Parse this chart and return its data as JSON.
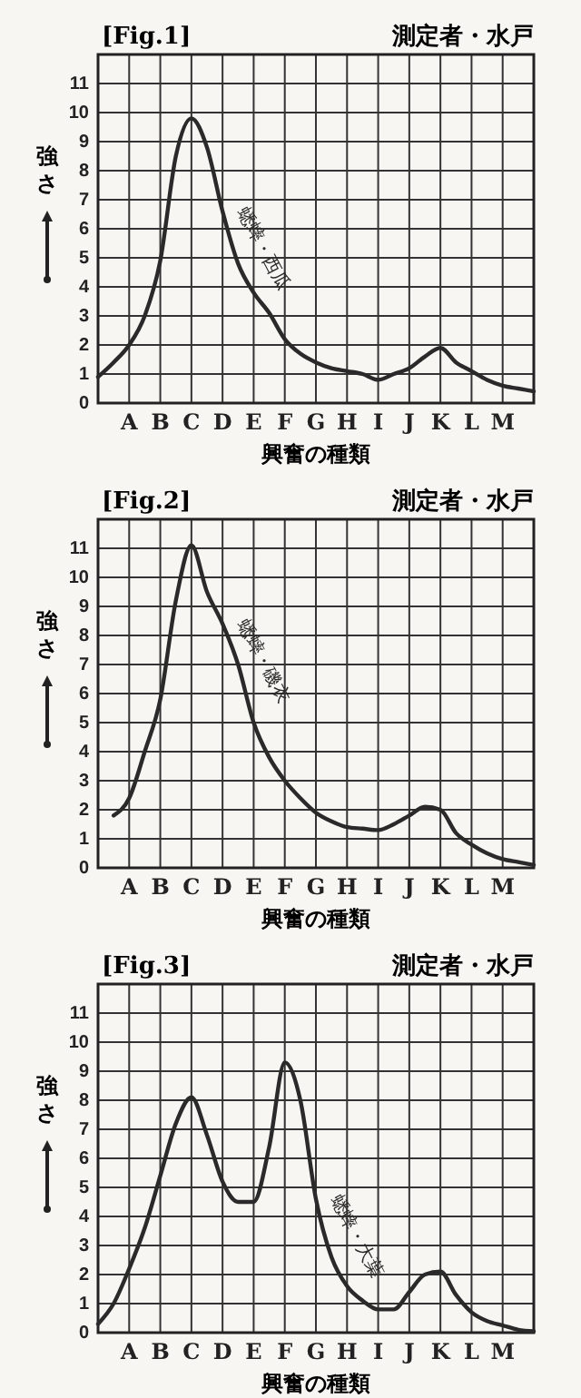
{
  "chart_data": [
    {
      "type": "line",
      "title": "[Fig.1]",
      "subtitle": "測定者・水戸",
      "xlabel": "興奮の種類",
      "ylabel": "強さ",
      "ylim": [
        0,
        12
      ],
      "categories": [
        null,
        null,
        "A",
        null,
        "B",
        null,
        "C",
        null,
        "D",
        null,
        "E",
        null,
        "F",
        null,
        "G",
        null,
        "H",
        null,
        "I",
        null,
        "J",
        null,
        "K",
        null,
        "L",
        null,
        "M",
        null,
        null
      ],
      "yticks": [
        0,
        1,
        2,
        3,
        4,
        5,
        6,
        7,
        8,
        9,
        10,
        11
      ],
      "grid": true,
      "line_style": "solid",
      "marker": "none",
      "series": [
        {
          "name": "蟋蟀・西瓜",
          "color": "#2a2a2a",
          "values": [
            0.9,
            1.4,
            2.0,
            3.0,
            4.9,
            8.5,
            9.8,
            8.8,
            6.6,
            4.8,
            3.8,
            3.1,
            2.2,
            1.7,
            1.4,
            1.2,
            1.1,
            1.0,
            0.8,
            1.0,
            1.2,
            1.6,
            1.9,
            1.4,
            1.1,
            0.8,
            0.6,
            0.5,
            0.4
          ]
        }
      ]
    },
    {
      "type": "line",
      "title": "[Fig.2]",
      "subtitle": "測定者・水戸",
      "xlabel": "興奮の種類",
      "ylabel": "強さ",
      "ylim": [
        0,
        12
      ],
      "categories": [
        null,
        null,
        "A",
        null,
        "B",
        null,
        "C",
        null,
        "D",
        null,
        "E",
        null,
        "F",
        null,
        "G",
        null,
        "H",
        null,
        "I",
        null,
        "J",
        null,
        "K",
        null,
        "L",
        null,
        "M",
        null,
        null
      ],
      "yticks": [
        0,
        1,
        2,
        3,
        4,
        5,
        6,
        7,
        8,
        9,
        10,
        11
      ],
      "grid": true,
      "line_style": "solid",
      "marker": "none",
      "series": [
        {
          "name": "蟋蟀・磯衣",
          "color": "#2a2a2a",
          "values": [
            null,
            1.8,
            2.4,
            4.0,
            5.8,
            9.2,
            11.1,
            9.5,
            8.4,
            7.0,
            5.0,
            3.8,
            3.0,
            2.4,
            1.9,
            1.6,
            1.4,
            1.35,
            1.3,
            1.5,
            1.8,
            2.1,
            2.0,
            1.2,
            0.8,
            0.5,
            0.3,
            0.2,
            0.1
          ]
        }
      ]
    },
    {
      "type": "line",
      "title": "[Fig.3]",
      "subtitle": "測定者・水戸",
      "xlabel": "興奮の種類",
      "ylabel": "強さ",
      "ylim": [
        0,
        12
      ],
      "categories": [
        null,
        null,
        "A",
        null,
        "B",
        null,
        "C",
        null,
        "D",
        null,
        "E",
        null,
        "F",
        null,
        "G",
        null,
        "H",
        null,
        "I",
        null,
        "J",
        null,
        "K",
        null,
        "L",
        null,
        "M",
        null,
        null
      ],
      "yticks": [
        0,
        1,
        2,
        3,
        4,
        5,
        6,
        7,
        8,
        9,
        10,
        11
      ],
      "grid": true,
      "line_style": "solid",
      "marker": "none",
      "series": [
        {
          "name": "蟋蟀・大葉",
          "color": "#2a2a2a",
          "values": [
            0.3,
            1.0,
            2.2,
            3.6,
            5.4,
            7.2,
            8.1,
            6.8,
            5.2,
            4.5,
            4.5,
            6.4,
            9.3,
            8.0,
            4.6,
            2.6,
            1.6,
            1.1,
            0.8,
            0.8,
            1.4,
            2.0,
            2.1,
            1.3,
            0.7,
            0.4,
            0.25,
            0.1,
            0.05
          ]
        }
      ]
    }
  ]
}
